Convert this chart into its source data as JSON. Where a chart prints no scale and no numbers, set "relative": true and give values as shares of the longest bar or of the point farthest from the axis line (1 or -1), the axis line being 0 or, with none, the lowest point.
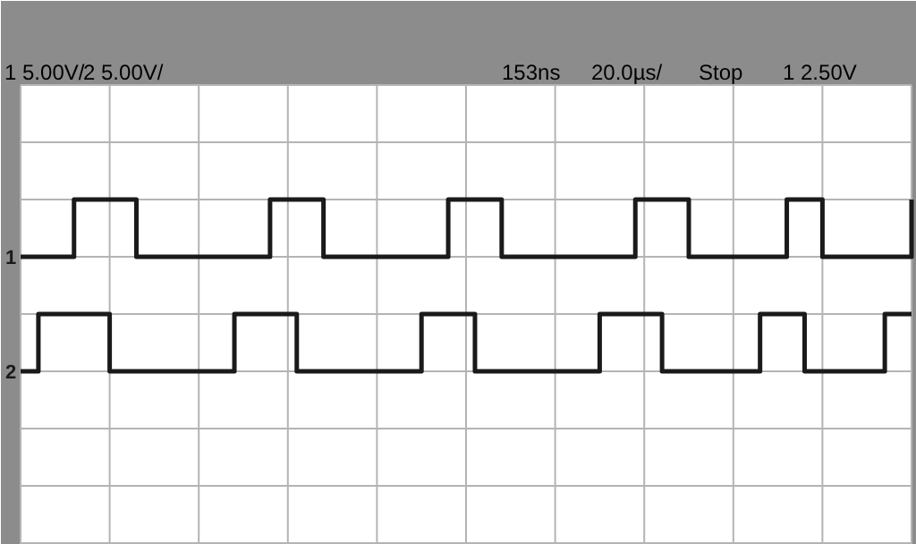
{
  "chart_data": {
    "type": "step",
    "relative": true,
    "categories": [
      null,
      null,
      null,
      null,
      null,
      null,
      null,
      null,
      null,
      null,
      null,
      null,
      null,
      null,
      null,
      null,
      null,
      null,
      null,
      null,
      null,
      null,
      null,
      null,
      null,
      null,
      null,
      null,
      null,
      null,
      null,
      null,
      null,
      null,
      null,
      null,
      null,
      null,
      null,
      null,
      null,
      null,
      null,
      null,
      null,
      null,
      null,
      null,
      null,
      null,
      null,
      null,
      null,
      null,
      null,
      null,
      null,
      null,
      null,
      null,
      null,
      null,
      null,
      null,
      null,
      null,
      null,
      null,
      null,
      null,
      null,
      null,
      null,
      null,
      null,
      null,
      null,
      null,
      null,
      null,
      null,
      null,
      null,
      null,
      null,
      null,
      null,
      null,
      null,
      null,
      null,
      null,
      null,
      null,
      null,
      null,
      null,
      null,
      null,
      null,
      null
    ],
    "grid": true,
    "line_style": "solid",
    "annotations": [
      "1 5.00V/",
      "2 5.00V/",
      "153ns",
      "20.0µs/",
      "Stop",
      "1 2.50V"
    ],
    "series": [
      {
        "name": "1",
        "color": "#1a1a1a",
        "values": [
          0.667,
          0.667,
          0.667,
          0.667,
          0.667,
          0.667,
          1,
          1,
          1,
          1,
          1,
          1,
          1,
          0.667,
          0.667,
          0.667,
          0.667,
          0.667,
          0.667,
          0.667,
          0.667,
          0.667,
          0.667,
          0.667,
          0.667,
          0.667,
          0.667,
          0.667,
          1,
          1,
          1,
          1,
          1,
          1,
          0.667,
          0.667,
          0.667,
          0.667,
          0.667,
          0.667,
          0.667,
          0.667,
          0.667,
          0.667,
          0.667,
          0.667,
          0.667,
          0.667,
          1,
          1,
          1,
          1,
          1,
          1,
          0.667,
          0.667,
          0.667,
          0.667,
          0.667,
          0.667,
          0.667,
          0.667,
          0.667,
          0.667,
          0.667,
          0.667,
          0.667,
          0.667,
          0.667,
          1,
          1,
          1,
          1,
          1,
          1,
          0.667,
          0.667,
          0.667,
          0.667,
          0.667,
          0.667,
          0.667,
          0.667,
          0.667,
          0.667,
          0.667,
          1,
          1,
          1,
          1,
          0.667,
          0.667,
          0.667,
          0.667,
          0.667,
          0.667,
          0.667,
          0.667,
          0.667,
          0.667,
          1
        ]
      },
      {
        "name": "2",
        "color": "#1a1a1a",
        "values": [
          0,
          0,
          0.333,
          0.333,
          0.333,
          0.333,
          0.333,
          0.333,
          0.333,
          0.333,
          0,
          0,
          0,
          0,
          0,
          0,
          0,
          0,
          0,
          0,
          0,
          0,
          0,
          0,
          0.333,
          0.333,
          0.333,
          0.333,
          0.333,
          0.333,
          0.333,
          0,
          0,
          0,
          0,
          0,
          0,
          0,
          0,
          0,
          0,
          0,
          0,
          0,
          0,
          0.333,
          0.333,
          0.333,
          0.333,
          0.333,
          0.333,
          0,
          0,
          0,
          0,
          0,
          0,
          0,
          0,
          0,
          0,
          0,
          0,
          0,
          0,
          0.333,
          0.333,
          0.333,
          0.333,
          0.333,
          0.333,
          0.333,
          0,
          0,
          0,
          0,
          0,
          0,
          0,
          0,
          0,
          0,
          0,
          0.333,
          0.333,
          0.333,
          0.333,
          0.333,
          0,
          0,
          0,
          0,
          0,
          0,
          0,
          0,
          0,
          0.333,
          0.333,
          0.333,
          0.333
        ]
      }
    ]
  }
}
